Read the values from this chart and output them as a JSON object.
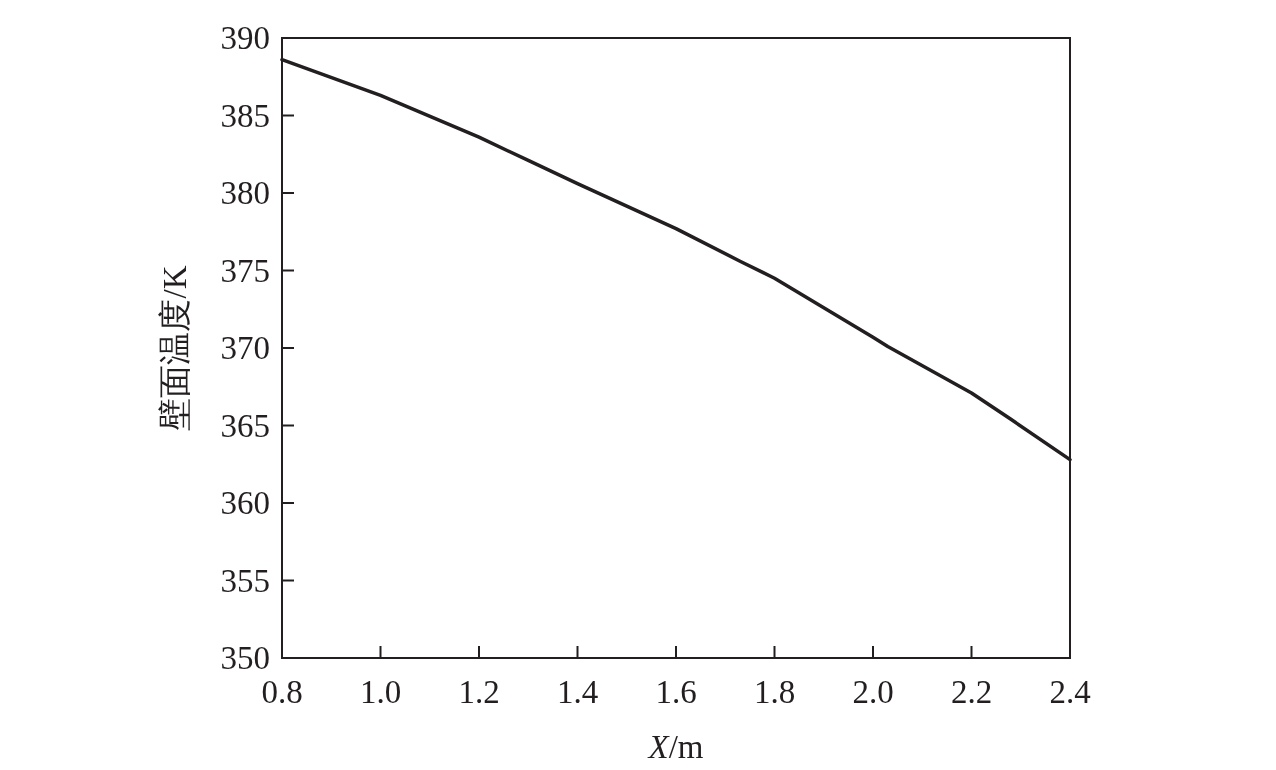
{
  "chart_data": {
    "type": "line",
    "xlabel": "*X*/m",
    "ylabel": "壁面温度/K",
    "x": [
      0.8,
      1.0,
      1.2,
      1.3,
      1.4,
      1.6,
      1.73,
      1.8,
      2.0,
      2.03,
      2.2,
      2.28,
      2.4
    ],
    "series": [
      {
        "color": "#231f20",
        "values": [
          388.6,
          386.3,
          383.6,
          382.1,
          380.6,
          377.7,
          375.6,
          374.5,
          370.7,
          370.1,
          367.1,
          365.4,
          362.8
        ]
      }
    ],
    "xlim": [
      0.8,
      2.4
    ],
    "ylim": [
      350,
      390
    ],
    "xticks": [
      {
        "value": 0.8,
        "label": "0.8"
      },
      {
        "value": 1.0,
        "label": "1.0"
      },
      {
        "value": 1.2,
        "label": "1.2"
      },
      {
        "value": 1.4,
        "label": "1.4"
      },
      {
        "value": 1.6,
        "label": "1.6"
      },
      {
        "value": 1.8,
        "label": "1.8"
      },
      {
        "value": 2.0,
        "label": "2.0"
      },
      {
        "value": 2.2,
        "label": "2.2"
      },
      {
        "value": 2.4,
        "label": "2.4"
      }
    ],
    "yticks": [
      350,
      355,
      360,
      365,
      370,
      375,
      380,
      385,
      390
    ],
    "marker": "none",
    "line_style": "solid"
  }
}
